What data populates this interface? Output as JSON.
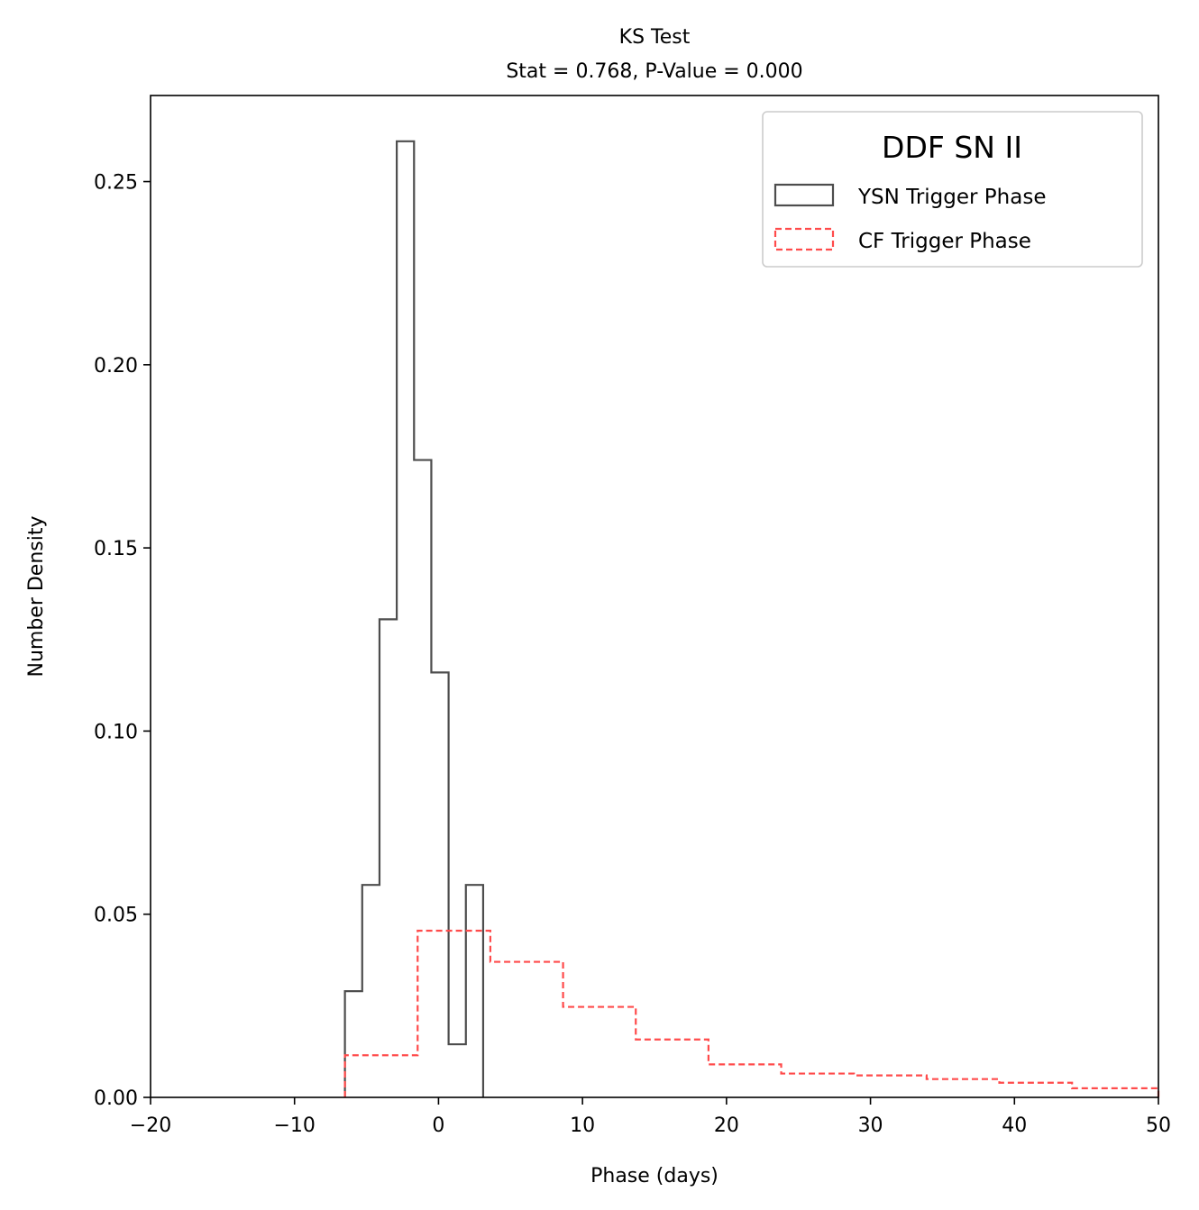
{
  "chart_data": {
    "type": "histogram",
    "title": "KS Test",
    "subtitle": "Stat = 0.768, P-Value = 0.000",
    "xlabel": "Phase (days)",
    "ylabel": "Number Density",
    "xlim": [
      -20,
      50
    ],
    "ylim": [
      0,
      0.2735
    ],
    "xticks": [
      -20,
      -10,
      0,
      10,
      20,
      30,
      40,
      50
    ],
    "xtick_labels": [
      "−20",
      "−10",
      "0",
      "10",
      "20",
      "30",
      "40",
      "50"
    ],
    "yticks": [
      0.0,
      0.05,
      0.1,
      0.15,
      0.2,
      0.25
    ],
    "ytick_labels": [
      "0.00",
      "0.05",
      "0.10",
      "0.15",
      "0.20",
      "0.25"
    ],
    "grid": false,
    "legend": {
      "title": "DDF SN II",
      "placement": "top-right",
      "entries": [
        "YSN Trigger Phase",
        "CF Trigger Phase"
      ]
    },
    "series": [
      {
        "name": "YSN Trigger Phase",
        "style": "solid",
        "color": "#4d4d4d",
        "bin_edges": [
          -6.5,
          -5.3,
          -4.1,
          -2.9,
          -1.7,
          -0.5,
          0.7,
          1.9,
          3.1
        ],
        "values": [
          0.029,
          0.058,
          0.1305,
          0.261,
          0.174,
          0.116,
          0.0145,
          0.058
        ]
      },
      {
        "name": "CF Trigger Phase",
        "style": "dashed",
        "color": "#ff4b4b",
        "bin_edges": [
          -6.5,
          -1.45,
          3.6,
          8.65,
          13.7,
          18.75,
          23.8,
          28.85,
          33.9,
          38.95,
          44.0,
          50.0
        ],
        "values": [
          0.0115,
          0.0455,
          0.037,
          0.0247,
          0.0158,
          0.009,
          0.0065,
          0.006,
          0.005,
          0.004,
          0.0025
        ]
      }
    ]
  }
}
